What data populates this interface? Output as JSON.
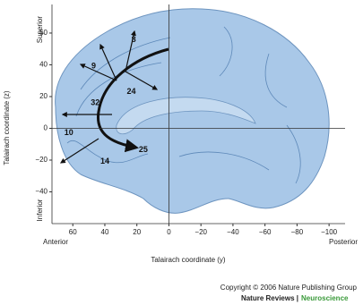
{
  "chart_data": {
    "type": "scatter",
    "x_label": "Talairach coordinate (y)",
    "y_label": "Talairach coordinate (z)",
    "anterior": "Anterior",
    "posterior": "Posterior",
    "superior": "Superior",
    "inferior": "Inferior",
    "xlim": [
      73,
      -110
    ],
    "ylim": [
      -60,
      78
    ],
    "xticks": [
      60,
      40,
      20,
      0,
      {
        "value": -20,
        "label": "−20"
      },
      {
        "value": -40,
        "label": "−40"
      },
      {
        "value": -60,
        "label": "−60"
      },
      {
        "value": -80,
        "label": "−80"
      },
      {
        "value": -100,
        "label": "−100"
      }
    ],
    "yticks": [
      60,
      40,
      20,
      0,
      {
        "value": -20,
        "label": "−20"
      },
      {
        "value": -40,
        "label": "−40"
      }
    ],
    "labels": [
      "8",
      "9",
      "24",
      "32",
      "10",
      "14",
      "25"
    ],
    "x": [
      22,
      47,
      23.5,
      46,
      62.5,
      40,
      16
    ],
    "y": [
      55.6,
      39,
      23,
      16,
      -3,
      -21,
      -13.5
    ],
    "copyright": "Copyright © 2006 Nature Publishing Group",
    "journal": "Nature Reviews |",
    "subjournal": "Neuroscience"
  }
}
